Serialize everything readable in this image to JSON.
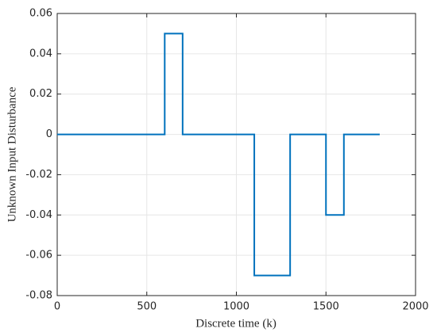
{
  "chart_data": {
    "type": "line",
    "xlabel": "Discrete time (k)",
    "ylabel": "Unknown Input Disturbance",
    "series": [
      {
        "color": "#0072bd",
        "x": [
          0,
          600,
          600,
          700,
          700,
          1100,
          1100,
          1300,
          1300,
          1500,
          1500,
          1600,
          1600,
          1800
        ],
        "values": [
          0,
          0,
          0.05,
          0.05,
          0,
          0,
          -0.07,
          -0.07,
          0,
          0,
          -0.04,
          -0.04,
          0,
          0
        ]
      }
    ],
    "xlim": [
      0,
      2000
    ],
    "xticks": [
      0,
      500,
      1000,
      1500,
      2000
    ],
    "ylim": [
      -0.08,
      0.06
    ],
    "yticks": [
      -0.08,
      -0.06,
      -0.04,
      -0.02,
      0,
      0.02,
      0.04,
      0.06
    ],
    "grid": true
  }
}
